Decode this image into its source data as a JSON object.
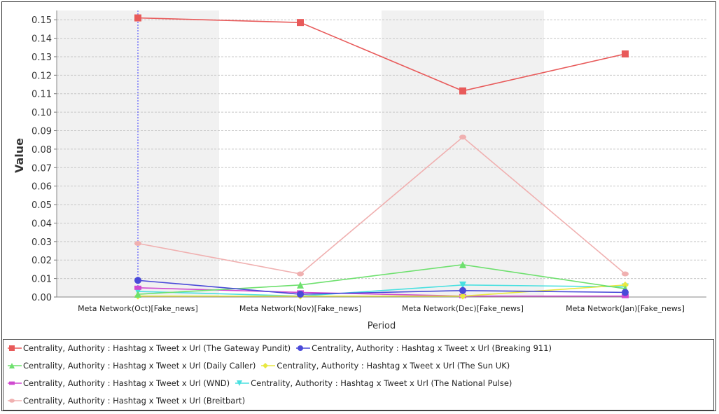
{
  "chart_data": {
    "type": "line",
    "title": "",
    "xlabel": "Period",
    "ylabel": "Value",
    "categories": [
      "Meta Network(Oct)[Fake_news]",
      "Meta Network(Nov)[Fake_news]",
      "Meta Network(Dec)[Fake_news]",
      "Meta Network(Jan)[Fake_news]"
    ],
    "ylim": [
      0,
      0.155
    ],
    "yticks": [
      "0.00",
      "0.01",
      "0.02",
      "0.03",
      "0.04",
      "0.05",
      "0.06",
      "0.07",
      "0.08",
      "0.09",
      "0.10",
      "0.11",
      "0.12",
      "0.13",
      "0.14",
      "0.15"
    ],
    "ytick_values": [
      0,
      0.01,
      0.02,
      0.03,
      0.04,
      0.05,
      0.06,
      0.07,
      0.08,
      0.09,
      0.1,
      0.11,
      0.12,
      0.13,
      0.14,
      0.15
    ],
    "grid": true,
    "legend_position": "bottom",
    "crosshair_category": 0,
    "series": [
      {
        "name": "Centrality, Authority : Hashtag x Tweet x Url (The Gateway Pundit)",
        "color": "#e85a5a",
        "marker": "square",
        "values": [
          0.151,
          0.1485,
          0.1115,
          0.1315
        ]
      },
      {
        "name": "Centrality, Authority : Hashtag x Tweet x Url (Breaking 911)",
        "color": "#4a4ad8",
        "marker": "circle",
        "values": [
          0.009,
          0.0015,
          0.0035,
          0.0025
        ]
      },
      {
        "name": "Centrality, Authority : Hashtag x Tweet x Url (Daily Caller)",
        "color": "#6ee06e",
        "marker": "triangle-up",
        "values": [
          0.0015,
          0.0065,
          0.0175,
          0.0045
        ]
      },
      {
        "name": "Centrality, Authority : Hashtag x Tweet x Url (The Sun UK)",
        "color": "#e8e840",
        "marker": "diamond",
        "values": [
          0.0005,
          0.0005,
          0.0005,
          0.0065
        ]
      },
      {
        "name": "Centrality, Authority : Hashtag x Tweet x Url (WND)",
        "color": "#d04ad0",
        "marker": "rect-flat",
        "values": [
          0.005,
          0.0025,
          0.0005,
          0.0005
        ]
      },
      {
        "name": "Centrality, Authority : Hashtag x Tweet x Url (The National Pulse)",
        "color": "#4ae0e0",
        "marker": "triangle-down",
        "values": [
          0.003,
          0.0005,
          0.0065,
          0.0055
        ]
      },
      {
        "name": "Centrality, Authority : Hashtag x Tweet x Url (Breitbart)",
        "color": "#f0b0b0",
        "marker": "ellipse",
        "values": [
          0.029,
          0.0125,
          0.0865,
          0.0125
        ]
      }
    ]
  },
  "legend": {
    "rows": [
      [
        0,
        1
      ],
      [
        2,
        3
      ],
      [
        4,
        5
      ],
      [
        6
      ]
    ]
  }
}
